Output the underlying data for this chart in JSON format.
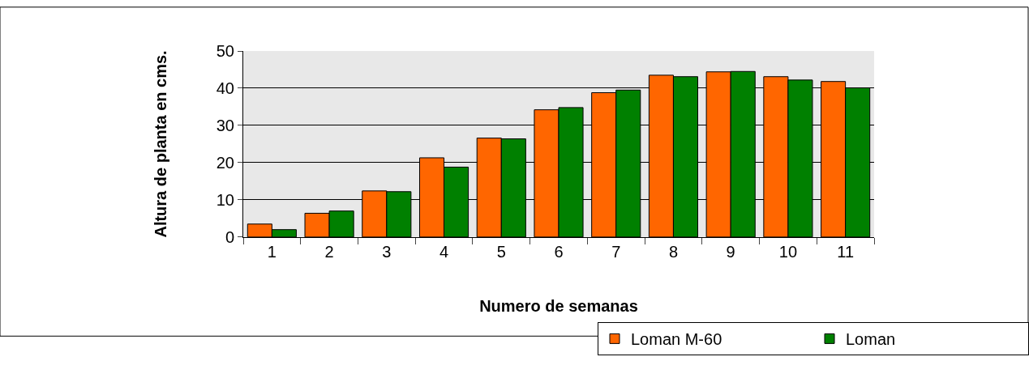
{
  "chart_data": {
    "type": "bar",
    "xlabel": "Numero de semanas",
    "ylabel": "Altura de planta en cms.",
    "categories": [
      "1",
      "2",
      "3",
      "4",
      "5",
      "6",
      "7",
      "8",
      "9",
      "10",
      "11"
    ],
    "series": [
      {
        "name": "Loman M-60",
        "color": "#ff6600",
        "values": [
          3.5,
          6.4,
          12.4,
          21.3,
          26.6,
          34.2,
          38.8,
          43.5,
          44.4,
          43.1,
          41.8
        ]
      },
      {
        "name": "Loman",
        "color": "#008000",
        "values": [
          2.0,
          7.0,
          12.2,
          18.8,
          26.4,
          34.8,
          39.5,
          43.1,
          44.5,
          42.2,
          40.1
        ]
      }
    ],
    "ylim": [
      0,
      50
    ],
    "yticks": [
      0,
      10,
      20,
      30,
      40,
      50
    ],
    "grid": "y",
    "legend": "bottom right"
  }
}
